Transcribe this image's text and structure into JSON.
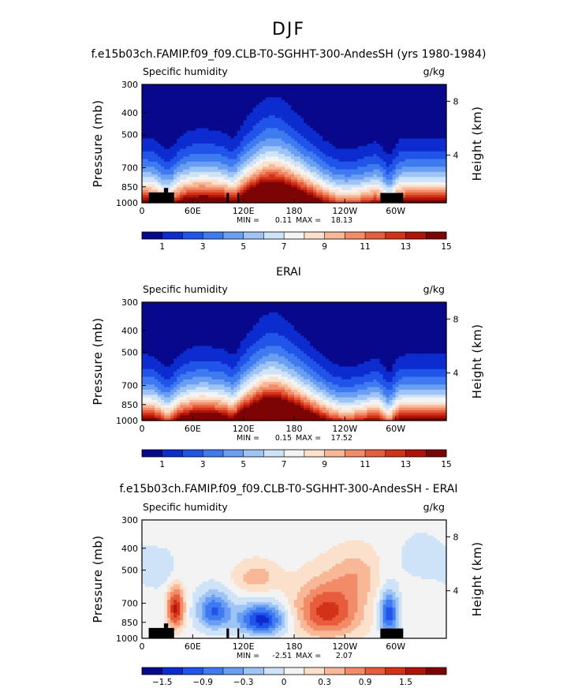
{
  "figure_title": "DJF",
  "chart_data": [
    {
      "type": "heatmap",
      "title": "f.e15b03ch.FAMIP.f09_f09.CLB-T0-SGHHT-300-AndesSH (yrs 1980-1984)",
      "subtitle_left": "Specific humidity",
      "units": "g/kg",
      "ylabel": "Pressure (mb)",
      "y2label": "Height (km)",
      "x_ticks": [
        "0",
        "60E",
        "120E",
        "180",
        "120W",
        "60W"
      ],
      "x_tick_lon": [
        0,
        60,
        120,
        180,
        240,
        300
      ],
      "xlim": [
        0,
        360
      ],
      "y_ticks": [
        "300",
        "400",
        "500",
        "700",
        "850",
        "1000"
      ],
      "y_tick_p": [
        300,
        400,
        500,
        700,
        850,
        1000
      ],
      "ylim": [
        300,
        1000
      ],
      "y_log": true,
      "y2_ticks": [
        "8",
        "4"
      ],
      "y2_tick_km": [
        8,
        4
      ],
      "stats": {
        "min_label": "MIN =",
        "min": "0.11",
        "max_label": "MAX =",
        "max": "18.13"
      },
      "colorbar": {
        "labels": [
          "1",
          "3",
          "5",
          "7",
          "9",
          "11",
          "13",
          "15"
        ],
        "colors": [
          "#08088c",
          "#0c2ccf",
          "#2154e8",
          "#3f7af0",
          "#6a9ef3",
          "#9ec4f5",
          "#cfe3f8",
          "#f3f3f3",
          "#fbe0cc",
          "#f8b898",
          "#f28c68",
          "#e65c3c",
          "#d23218",
          "#b01408",
          "#7c0404"
        ]
      },
      "field": "absolute",
      "level_range": [
        0,
        16
      ],
      "topography": "model"
    },
    {
      "type": "heatmap",
      "title": "ERAI",
      "subtitle_left": "Specific humidity",
      "units": "g/kg",
      "ylabel": "Pressure (mb)",
      "y2label": "Height (km)",
      "x_ticks": [
        "0",
        "60E",
        "120E",
        "180",
        "120W",
        "60W"
      ],
      "x_tick_lon": [
        0,
        60,
        120,
        180,
        240,
        300
      ],
      "xlim": [
        0,
        360
      ],
      "y_ticks": [
        "300",
        "400",
        "500",
        "700",
        "850",
        "1000"
      ],
      "y_tick_p": [
        300,
        400,
        500,
        700,
        850,
        1000
      ],
      "ylim": [
        300,
        1000
      ],
      "y_log": true,
      "y2_ticks": [
        "8",
        "4"
      ],
      "y2_tick_km": [
        8,
        4
      ],
      "stats": {
        "min_label": "MIN =",
        "min": "0.15",
        "max_label": "MAX =",
        "max": "17.52"
      },
      "colorbar": {
        "labels": [
          "1",
          "3",
          "5",
          "7",
          "9",
          "11",
          "13",
          "15"
        ],
        "colors": [
          "#08088c",
          "#0c2ccf",
          "#2154e8",
          "#3f7af0",
          "#6a9ef3",
          "#9ec4f5",
          "#cfe3f8",
          "#f3f3f3",
          "#fbe0cc",
          "#f8b898",
          "#f28c68",
          "#e65c3c",
          "#d23218",
          "#b01408",
          "#7c0404"
        ]
      },
      "field": "absolute",
      "level_range": [
        0,
        16
      ],
      "topography": "none"
    },
    {
      "type": "heatmap",
      "title": "f.e15b03ch.FAMIP.f09_f09.CLB-T0-SGHHT-300-AndesSH - ERAI",
      "subtitle_left": "Specific humidity",
      "units": "g/kg",
      "ylabel": "Pressure (mb)",
      "y2label": "Height (km)",
      "x_ticks": [
        "0",
        "60E",
        "120E",
        "180",
        "120W",
        "60W"
      ],
      "x_tick_lon": [
        0,
        60,
        120,
        180,
        240,
        300
      ],
      "xlim": [
        0,
        360
      ],
      "y_ticks": [
        "300",
        "400",
        "500",
        "700",
        "850",
        "1000"
      ],
      "y_tick_p": [
        300,
        400,
        500,
        700,
        850,
        1000
      ],
      "ylim": [
        300,
        1000
      ],
      "y_log": true,
      "y2_ticks": [
        "8",
        "4"
      ],
      "y2_tick_km": [
        8,
        4
      ],
      "stats": {
        "min_label": "MIN =",
        "min": "-2.51",
        "max_label": "MAX =",
        "max": "2.07"
      },
      "colorbar": {
        "labels": [
          "−1.5",
          "−0.9",
          "−0.3",
          "0",
          "0.3",
          "0.9",
          "1.5"
        ],
        "colors": [
          "#08088c",
          "#0c2ccf",
          "#2154e8",
          "#3f7af0",
          "#6a9ef3",
          "#9ec4f5",
          "#cfe3f8",
          "#f3f3f3",
          "#fbe0cc",
          "#f8b898",
          "#f28c68",
          "#e65c3c",
          "#d23218",
          "#b01408",
          "#7c0404"
        ]
      },
      "field": "difference",
      "level_range": [
        -2.1,
        2.1
      ],
      "topography": "model"
    }
  ],
  "topography_blocks": [
    {
      "lon": [
        8,
        38
      ],
      "p": [
        900,
        1000
      ]
    },
    {
      "lon": [
        26,
        31
      ],
      "p": [
        860,
        900
      ]
    },
    {
      "lon": [
        100,
        103
      ],
      "p": [
        905,
        1000
      ]
    },
    {
      "lon": [
        113,
        115
      ],
      "p": [
        905,
        1000
      ]
    },
    {
      "lon": [
        282,
        309
      ],
      "p": [
        905,
        1000
      ]
    }
  ]
}
